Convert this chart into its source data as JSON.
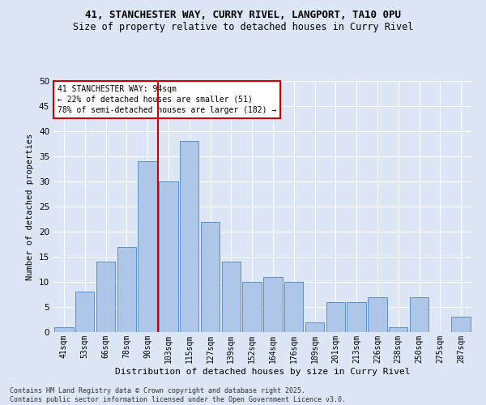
{
  "title_line1": "41, STANCHESTER WAY, CURRY RIVEL, LANGPORT, TA10 0PU",
  "title_line2": "Size of property relative to detached houses in Curry Rivel",
  "xlabel": "Distribution of detached houses by size in Curry Rivel",
  "ylabel": "Number of detached properties",
  "categories": [
    "41sqm",
    "53sqm",
    "66sqm",
    "78sqm",
    "90sqm",
    "103sqm",
    "115sqm",
    "127sqm",
    "139sqm",
    "152sqm",
    "164sqm",
    "176sqm",
    "189sqm",
    "201sqm",
    "213sqm",
    "226sqm",
    "238sqm",
    "250sqm",
    "275sqm",
    "287sqm"
  ],
  "values": [
    1,
    8,
    14,
    17,
    34,
    30,
    38,
    22,
    14,
    10,
    11,
    10,
    2,
    6,
    6,
    7,
    1,
    7,
    0,
    3
  ],
  "bar_color": "#aec6e8",
  "bar_edge_color": "#5b8fc9",
  "vline_x_index": 4.5,
  "vline_color": "#cc0000",
  "annotation_line1": "41 STANCHESTER WAY: 94sqm",
  "annotation_line2": "← 22% of detached houses are smaller (51)",
  "annotation_line3": "78% of semi-detached houses are larger (182) →",
  "annotation_box_color": "#ffffff",
  "annotation_box_edge": "#cc0000",
  "ylim": [
    0,
    50
  ],
  "yticks": [
    0,
    5,
    10,
    15,
    20,
    25,
    30,
    35,
    40,
    45,
    50
  ],
  "bg_color": "#dce6f5",
  "grid_color": "#ffffff",
  "footer": "Contains HM Land Registry data © Crown copyright and database right 2025.\nContains public sector information licensed under the Open Government Licence v3.0."
}
